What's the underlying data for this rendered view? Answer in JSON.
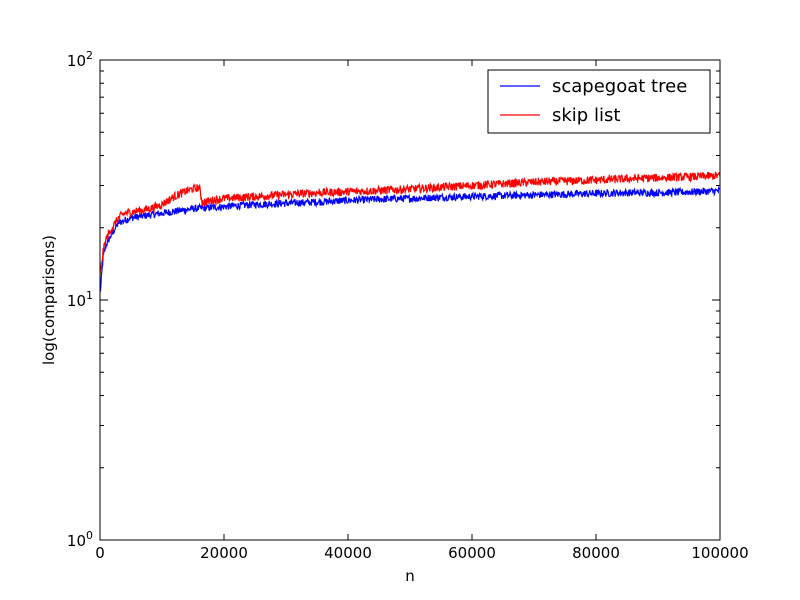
{
  "chart_data": {
    "type": "line",
    "xlabel": "n",
    "ylabel": "log(comparisons)",
    "y_scale": "log",
    "xlim": [
      0,
      100000
    ],
    "ylim": [
      1,
      100
    ],
    "x_ticks": [
      0,
      20000,
      40000,
      60000,
      80000,
      100000
    ],
    "x_tick_labels": [
      "0",
      "20000",
      "40000",
      "60000",
      "80000",
      "100000"
    ],
    "y_ticks": [
      1,
      10,
      100
    ],
    "y_tick_labels": [
      {
        "base": "10",
        "exp": "0"
      },
      {
        "base": "10",
        "exp": "1"
      },
      {
        "base": "10",
        "exp": "2"
      }
    ],
    "grid": false,
    "legend_position": "top-right",
    "series": [
      {
        "name": "scapegoat tree",
        "color": "#0000ff",
        "x": [
          100,
          500,
          1000,
          2000,
          3000,
          5000,
          7500,
          10000,
          15000,
          20000,
          25000,
          30000,
          35000,
          40000,
          45000,
          50000,
          55000,
          60000,
          65000,
          70000,
          75000,
          80000,
          85000,
          90000,
          95000,
          100000
        ],
        "y": [
          11,
          15,
          17,
          19,
          21,
          22,
          22.5,
          23,
          24,
          24.5,
          25,
          25.3,
          25.6,
          26,
          26.3,
          26.5,
          26.8,
          27,
          27.2,
          27.4,
          27.6,
          27.8,
          28,
          28,
          28.2,
          28.5
        ],
        "noise": 0.035
      },
      {
        "name": "skip list",
        "color": "#ff0000",
        "x": [
          100,
          500,
          1000,
          2000,
          3000,
          4000,
          6000,
          8000,
          10000,
          12000,
          14000,
          16000,
          16500,
          18000,
          20000,
          25000,
          30000,
          35000,
          40000,
          45000,
          50000,
          55000,
          60000,
          65000,
          70000,
          75000,
          80000,
          85000,
          90000,
          95000,
          100000
        ],
        "y": [
          13,
          16,
          18,
          20,
          22,
          23,
          23.5,
          24,
          25,
          27,
          28.5,
          29.5,
          25.5,
          26,
          26.5,
          27,
          27.5,
          28,
          28.3,
          28.6,
          29,
          29.5,
          30,
          30.5,
          31,
          31.3,
          31.6,
          32,
          32.3,
          32.6,
          33
        ],
        "noise": 0.04
      }
    ]
  }
}
